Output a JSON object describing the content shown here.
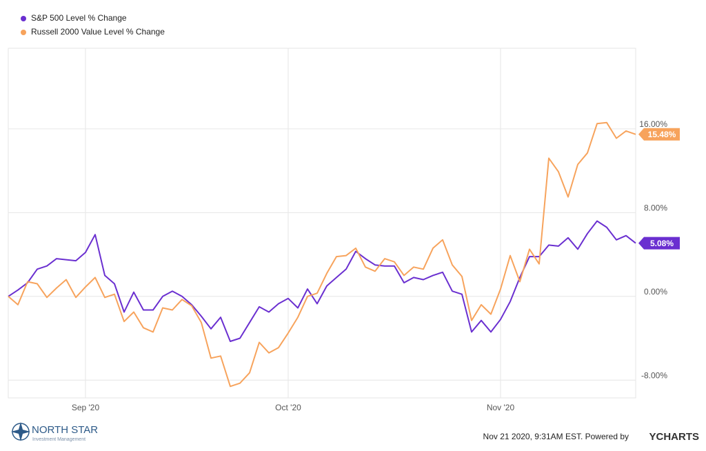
{
  "chart_data": {
    "type": "line",
    "categories": [
      null,
      null,
      null,
      null,
      null,
      null,
      null,
      null,
      "Sep '20",
      null,
      null,
      null,
      null,
      null,
      null,
      null,
      null,
      null,
      null,
      null,
      null,
      null,
      null,
      null,
      null,
      null,
      null,
      null,
      null,
      "Oct '20",
      null,
      null,
      null,
      null,
      null,
      null,
      null,
      null,
      null,
      null,
      null,
      null,
      null,
      null,
      null,
      null,
      null,
      null,
      null,
      null,
      null,
      "Nov '20",
      null,
      null,
      null,
      null,
      null,
      null,
      null,
      null,
      null,
      null,
      null,
      null,
      null,
      null
    ],
    "series": [
      {
        "name": "S&P 500 Level % Change",
        "color": "#6a2fd0",
        "values": [
          0,
          0.6,
          1.3,
          2.6,
          2.9,
          3.6,
          3.5,
          3.4,
          4.2,
          5.9,
          2.0,
          1.2,
          -1.5,
          0.4,
          -1.3,
          -1.3,
          0,
          0.5,
          0,
          -0.8,
          -1.9,
          -3.1,
          -2.0,
          -4.3,
          -4.0,
          -2.5,
          -1.0,
          -1.5,
          -0.7,
          -0.2,
          -1.1,
          0.7,
          -0.7,
          1.0,
          1.8,
          2.6,
          4.3,
          3.6,
          3.0,
          2.9,
          2.9,
          1.3,
          1.8,
          1.6,
          2.0,
          2.3,
          0.5,
          0.2,
          -3.4,
          -2.3,
          -3.4,
          -2.2,
          -0.5,
          1.8,
          3.8,
          3.8,
          4.9,
          4.8,
          5.6,
          4.5,
          6.0,
          7.2,
          6.6,
          5.4,
          5.8,
          5.08
        ],
        "value_labels": [
          null,
          null,
          null,
          null,
          null,
          null,
          null,
          null,
          null,
          null,
          null,
          null,
          null,
          null,
          null,
          null,
          null,
          null,
          null,
          null,
          null,
          null,
          null,
          null,
          null,
          null,
          null,
          null,
          null,
          null,
          null,
          null,
          null,
          null,
          null,
          null,
          null,
          null,
          null,
          null,
          null,
          null,
          null,
          null,
          null,
          null,
          null,
          null,
          null,
          null,
          null,
          null,
          null,
          null,
          null,
          null,
          null,
          null,
          null,
          null,
          null,
          null,
          null,
          null,
          null,
          "5.08%"
        ]
      },
      {
        "name": "Russell 2000 Value Level % Change",
        "color": "#f7a35c",
        "values": [
          0,
          -0.8,
          1.4,
          1.2,
          -0.1,
          0.8,
          1.6,
          -0.1,
          0.9,
          1.8,
          -0.1,
          0.2,
          -2.4,
          -1.5,
          -3.0,
          -3.4,
          -1.1,
          -1.3,
          -0.3,
          -0.9,
          -2.5,
          -5.9,
          -5.7,
          -8.6,
          -8.3,
          -7.3,
          -4.4,
          -5.4,
          -4.9,
          -3.5,
          -2.0,
          0.0,
          0.3,
          2.2,
          3.8,
          3.9,
          4.6,
          2.8,
          2.4,
          3.6,
          3.3,
          2.0,
          2.8,
          2.6,
          4.6,
          5.4,
          3.0,
          1.9,
          -2.3,
          -0.8,
          -1.7,
          0.7,
          3.9,
          1.4,
          4.5,
          3.1,
          13.2,
          11.9,
          9.5,
          12.6,
          13.7,
          16.5,
          16.6,
          15.1,
          15.8,
          15.48
        ],
        "value_labels": [
          null,
          null,
          null,
          null,
          null,
          null,
          null,
          null,
          null,
          null,
          null,
          null,
          null,
          null,
          null,
          null,
          null,
          null,
          null,
          null,
          null,
          null,
          null,
          null,
          null,
          null,
          null,
          null,
          null,
          null,
          null,
          null,
          null,
          null,
          null,
          null,
          null,
          null,
          null,
          null,
          null,
          null,
          null,
          null,
          null,
          null,
          null,
          null,
          null,
          null,
          null,
          null,
          null,
          null,
          null,
          null,
          null,
          null,
          null,
          null,
          null,
          null,
          null,
          null,
          null,
          "15.48%"
        ]
      }
    ],
    "ylim": [
      -9.7,
      23.7
    ],
    "yticks": [
      {
        "value": -8,
        "label": "-8.00%"
      },
      {
        "value": 0,
        "label": "0.00%"
      },
      {
        "value": 8,
        "label": "8.00%"
      },
      {
        "value": 16,
        "label": "16.00%"
      }
    ],
    "grid": true,
    "legend": "top-left"
  },
  "footer": {
    "logo_name": "NORTH STAR",
    "logo_sub": "Investment Management",
    "timestamp": "Nov 21 2020, 9:31AM EST. Powered by",
    "brand": "YCHARTS"
  }
}
